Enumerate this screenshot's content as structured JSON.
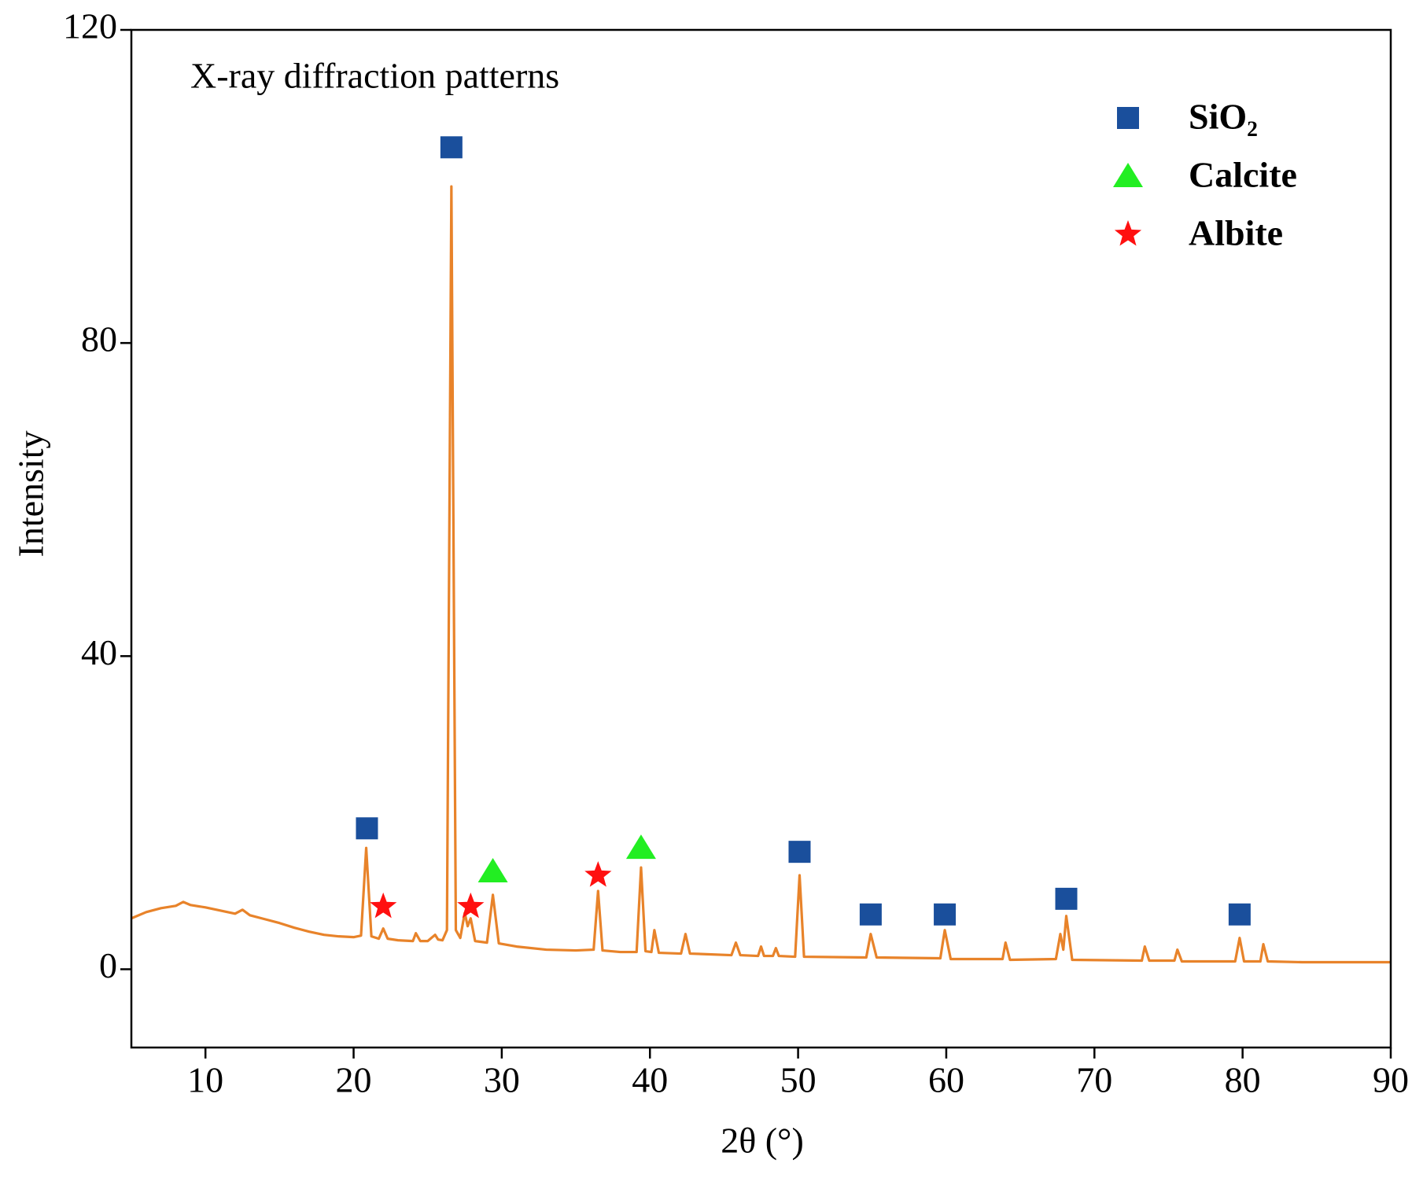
{
  "chart_data": {
    "type": "line",
    "annotation": "X-ray diffraction patterns",
    "xlabel": "2θ (°)",
    "ylabel": "Intensity",
    "xlim": [
      5,
      90
    ],
    "ylim": [
      -10,
      120
    ],
    "xticks": [
      10,
      20,
      30,
      40,
      50,
      60,
      70,
      80,
      90
    ],
    "yticks": [
      0,
      40,
      80,
      120
    ],
    "legend": "upper right",
    "series": [
      {
        "color": "#e8832a",
        "x": [
          5,
          6,
          7,
          8,
          8.5,
          9,
          10,
          11,
          12,
          12.5,
          13,
          14,
          15,
          16,
          17,
          18,
          19,
          20,
          20.5,
          20.85,
          21.2,
          21.7,
          22.0,
          22.3,
          23,
          24,
          24.2,
          24.5,
          25,
          25.5,
          25.7,
          26,
          26.3,
          26.6,
          26.9,
          27.2,
          27.5,
          27.7,
          27.9,
          28.2,
          29,
          29.4,
          29.8,
          31,
          33,
          35,
          36.2,
          36.5,
          36.8,
          38,
          39.1,
          39.4,
          39.7,
          40.1,
          40.3,
          40.6,
          42.1,
          42.4,
          42.7,
          45.5,
          45.8,
          46.1,
          47.3,
          47.5,
          47.7,
          48.3,
          48.5,
          48.7,
          49.8,
          50.1,
          50.4,
          54.6,
          54.9,
          55.3,
          59.6,
          59.9,
          60.3,
          63.8,
          64.0,
          64.3,
          67.4,
          67.7,
          67.9,
          68.1,
          68.5,
          73.2,
          73.4,
          73.7,
          75.4,
          75.6,
          75.9,
          79.5,
          79.8,
          80.1,
          81.2,
          81.4,
          81.7,
          84,
          85,
          87,
          90
        ],
        "values": [
          6.5,
          7.3,
          7.8,
          8.1,
          8.6,
          8.2,
          7.9,
          7.5,
          7.1,
          7.6,
          6.9,
          6.4,
          5.9,
          5.3,
          4.8,
          4.4,
          4.2,
          4.1,
          4.3,
          15.5,
          4.2,
          3.9,
          5.2,
          3.9,
          3.7,
          3.6,
          4.6,
          3.6,
          3.6,
          4.4,
          3.8,
          3.7,
          5,
          100,
          5,
          4,
          7.2,
          5.5,
          6.5,
          3.6,
          3.4,
          9.5,
          3.3,
          2.9,
          2.5,
          2.4,
          2.5,
          10,
          2.4,
          2.2,
          2.2,
          13,
          2.3,
          2.2,
          5,
          2.1,
          2,
          4.5,
          2,
          1.8,
          3.4,
          1.8,
          1.7,
          2.9,
          1.7,
          1.7,
          2.7,
          1.7,
          1.6,
          12,
          1.6,
          1.5,
          4.5,
          1.5,
          1.4,
          5,
          1.3,
          1.3,
          3.4,
          1.2,
          1.3,
          4.5,
          2.5,
          6.8,
          1.2,
          1.1,
          2.9,
          1.1,
          1.1,
          2.5,
          1,
          1,
          4,
          1,
          1,
          3.2,
          1,
          0.9,
          0.9,
          0.9,
          0.9
        ]
      }
    ],
    "markers": [
      {
        "name": "SiO₂",
        "shape": "square",
        "color": "#1a4f9c",
        "x": [
          20.9,
          26.6,
          50.1,
          54.9,
          59.9,
          68.1,
          79.8
        ],
        "values": [
          18,
          105,
          15,
          7,
          7,
          9,
          7
        ]
      },
      {
        "name": "Calcite",
        "shape": "triangle",
        "color": "#22ee22",
        "x": [
          29.4,
          39.4
        ],
        "values": [
          12.5,
          15.5
        ]
      },
      {
        "name": "Albite",
        "shape": "star",
        "color": "#ff1010",
        "x": [
          22.0,
          27.9,
          36.5
        ],
        "values": [
          8,
          8,
          12
        ]
      }
    ]
  }
}
